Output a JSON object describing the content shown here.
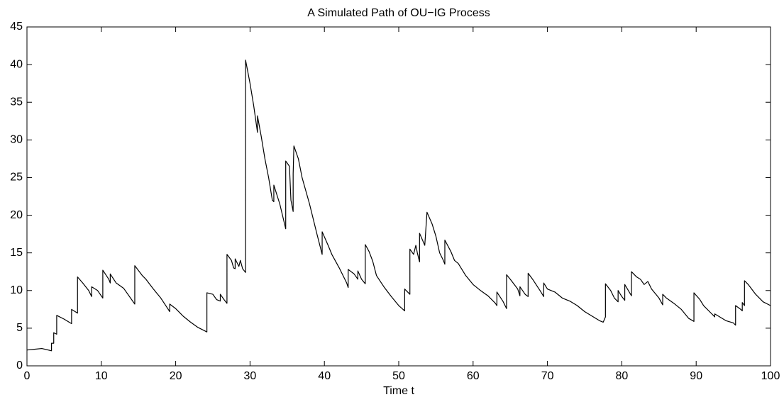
{
  "chart_data": {
    "type": "line",
    "title": "A Simulated Path of OU−IG Process",
    "x_label": "Time t",
    "x": [
      0,
      1,
      2,
      3.3,
      3.3,
      3.6,
      3.6,
      4,
      4,
      5,
      6,
      6,
      6.8,
      6.8,
      7.5,
      8.3,
      8.7,
      8.7,
      9.5,
      10.2,
      10.2,
      11,
      11.2,
      11.2,
      12,
      13,
      14.5,
      14.5,
      15.5,
      16,
      17,
      18,
      19,
      19.2,
      19.2,
      20,
      21,
      22,
      23,
      24.2,
      24.2,
      25,
      25.5,
      26,
      26,
      26.5,
      26.9,
      26.9,
      27.5,
      27.8,
      28,
      28,
      28.5,
      28.7,
      29,
      29.4,
      29.4,
      30,
      30.5,
      31,
      31,
      31.5,
      32,
      32.5,
      33,
      33.2,
      33.2,
      34,
      34.8,
      34.8,
      35.3,
      35.5,
      35.8,
      35.8,
      35.9,
      36.5,
      37,
      38,
      39,
      39.7,
      39.7,
      40.5,
      41,
      42,
      43,
      43.2,
      43.2,
      44,
      44.5,
      44.5,
      45,
      45.5,
      45.5,
      46,
      46.5,
      47,
      48,
      49,
      50,
      50.8,
      50.8,
      51.5,
      51.5,
      52,
      52.3,
      52.5,
      52.8,
      52.8,
      53.5,
      53.8,
      54.5,
      55,
      55.5,
      56,
      56.2,
      56.2,
      57,
      57.5,
      58,
      59,
      60,
      61,
      62,
      63,
      63.2,
      63.2,
      64,
      64.5,
      64.5,
      65,
      66,
      66.3,
      66.3,
      67,
      67.4,
      67.4,
      68,
      69,
      69.5,
      69.5,
      70,
      71,
      72,
      73,
      74,
      75,
      76,
      77,
      77.5,
      77.8,
      77.8,
      78.5,
      79,
      79.5,
      79.5,
      80,
      80.4,
      80.4,
      81,
      81.3,
      81.3,
      82,
      82.5,
      83,
      83.5,
      84,
      85,
      85.5,
      85.5,
      86,
      87,
      88,
      89,
      89.7,
      89.7,
      90.5,
      91,
      92,
      92.5,
      92.5,
      93,
      94,
      95,
      95.3,
      95.3,
      96,
      96.2,
      96.2,
      96.5,
      96.5,
      97,
      98,
      99,
      100
    ],
    "series": [
      {
        "color": "#000000",
        "values": [
          2.1,
          2.2,
          2.3,
          2.0,
          3.0,
          3.0,
          4.4,
          4.2,
          6.7,
          6.2,
          5.6,
          7.5,
          7.0,
          11.8,
          11.0,
          10.0,
          9.2,
          10.5,
          10.0,
          9.0,
          12.7,
          11.5,
          11.0,
          12.2,
          11.0,
          10.3,
          8.2,
          13.3,
          12.0,
          11.5,
          10.2,
          9.0,
          7.5,
          7.2,
          8.2,
          7.6,
          6.6,
          5.8,
          5.1,
          4.5,
          9.7,
          9.5,
          8.8,
          8.6,
          9.5,
          8.8,
          8.3,
          14.8,
          14.0,
          13.0,
          12.9,
          14.2,
          13.2,
          14.0,
          12.9,
          12.4,
          40.6,
          37.5,
          34.5,
          31.0,
          33.2,
          30.5,
          27.5,
          25,
          22,
          21.8,
          24,
          21.5,
          18.2,
          27.2,
          26.5,
          22.0,
          20.5,
          25.5,
          29.2,
          27.5,
          25,
          21.5,
          17.5,
          14.8,
          17.8,
          16,
          14.8,
          13,
          11,
          10.4,
          12.8,
          12.2,
          11.5,
          12.6,
          11.5,
          10.9,
          16.1,
          15.2,
          13.9,
          12,
          10.5,
          9.2,
          8,
          7.3,
          10.2,
          9.5,
          15.5,
          14.8,
          16,
          15,
          13.8,
          17.6,
          16,
          20.4,
          18.8,
          17.2,
          15,
          14,
          13.5,
          16.7,
          15.2,
          14,
          13.6,
          12,
          10.8,
          10,
          9.3,
          8.3,
          8,
          9.8,
          8.6,
          7.6,
          12.1,
          11.5,
          10.2,
          9.3,
          10.5,
          9.5,
          9.2,
          12.3,
          11.5,
          10,
          9.2,
          11,
          10.2,
          9.8,
          9,
          8.6,
          8,
          7.2,
          6.6,
          6,
          5.8,
          6.5,
          10.9,
          10,
          9,
          8.5,
          10,
          9.2,
          8.7,
          10.8,
          9.8,
          9.3,
          12.5,
          11.8,
          11.5,
          10.8,
          11.2,
          10.2,
          9,
          8.1,
          9.5,
          9,
          8.3,
          7.5,
          6.3,
          5.9,
          9.7,
          8.8,
          8,
          7,
          6.5,
          6.9,
          6.6,
          6,
          5.7,
          5.4,
          8,
          7.5,
          7.3,
          8.4,
          8,
          11.3,
          10.8,
          9.5,
          8.5,
          8
        ]
      }
    ],
    "xlim": [
      0,
      100
    ],
    "xticks": [
      0,
      10,
      20,
      30,
      40,
      50,
      60,
      70,
      80,
      90,
      100
    ],
    "ylim": [
      0,
      45
    ],
    "yticks": [
      0,
      5,
      10,
      15,
      20,
      25,
      30,
      35,
      40,
      45
    ],
    "grid": false
  }
}
